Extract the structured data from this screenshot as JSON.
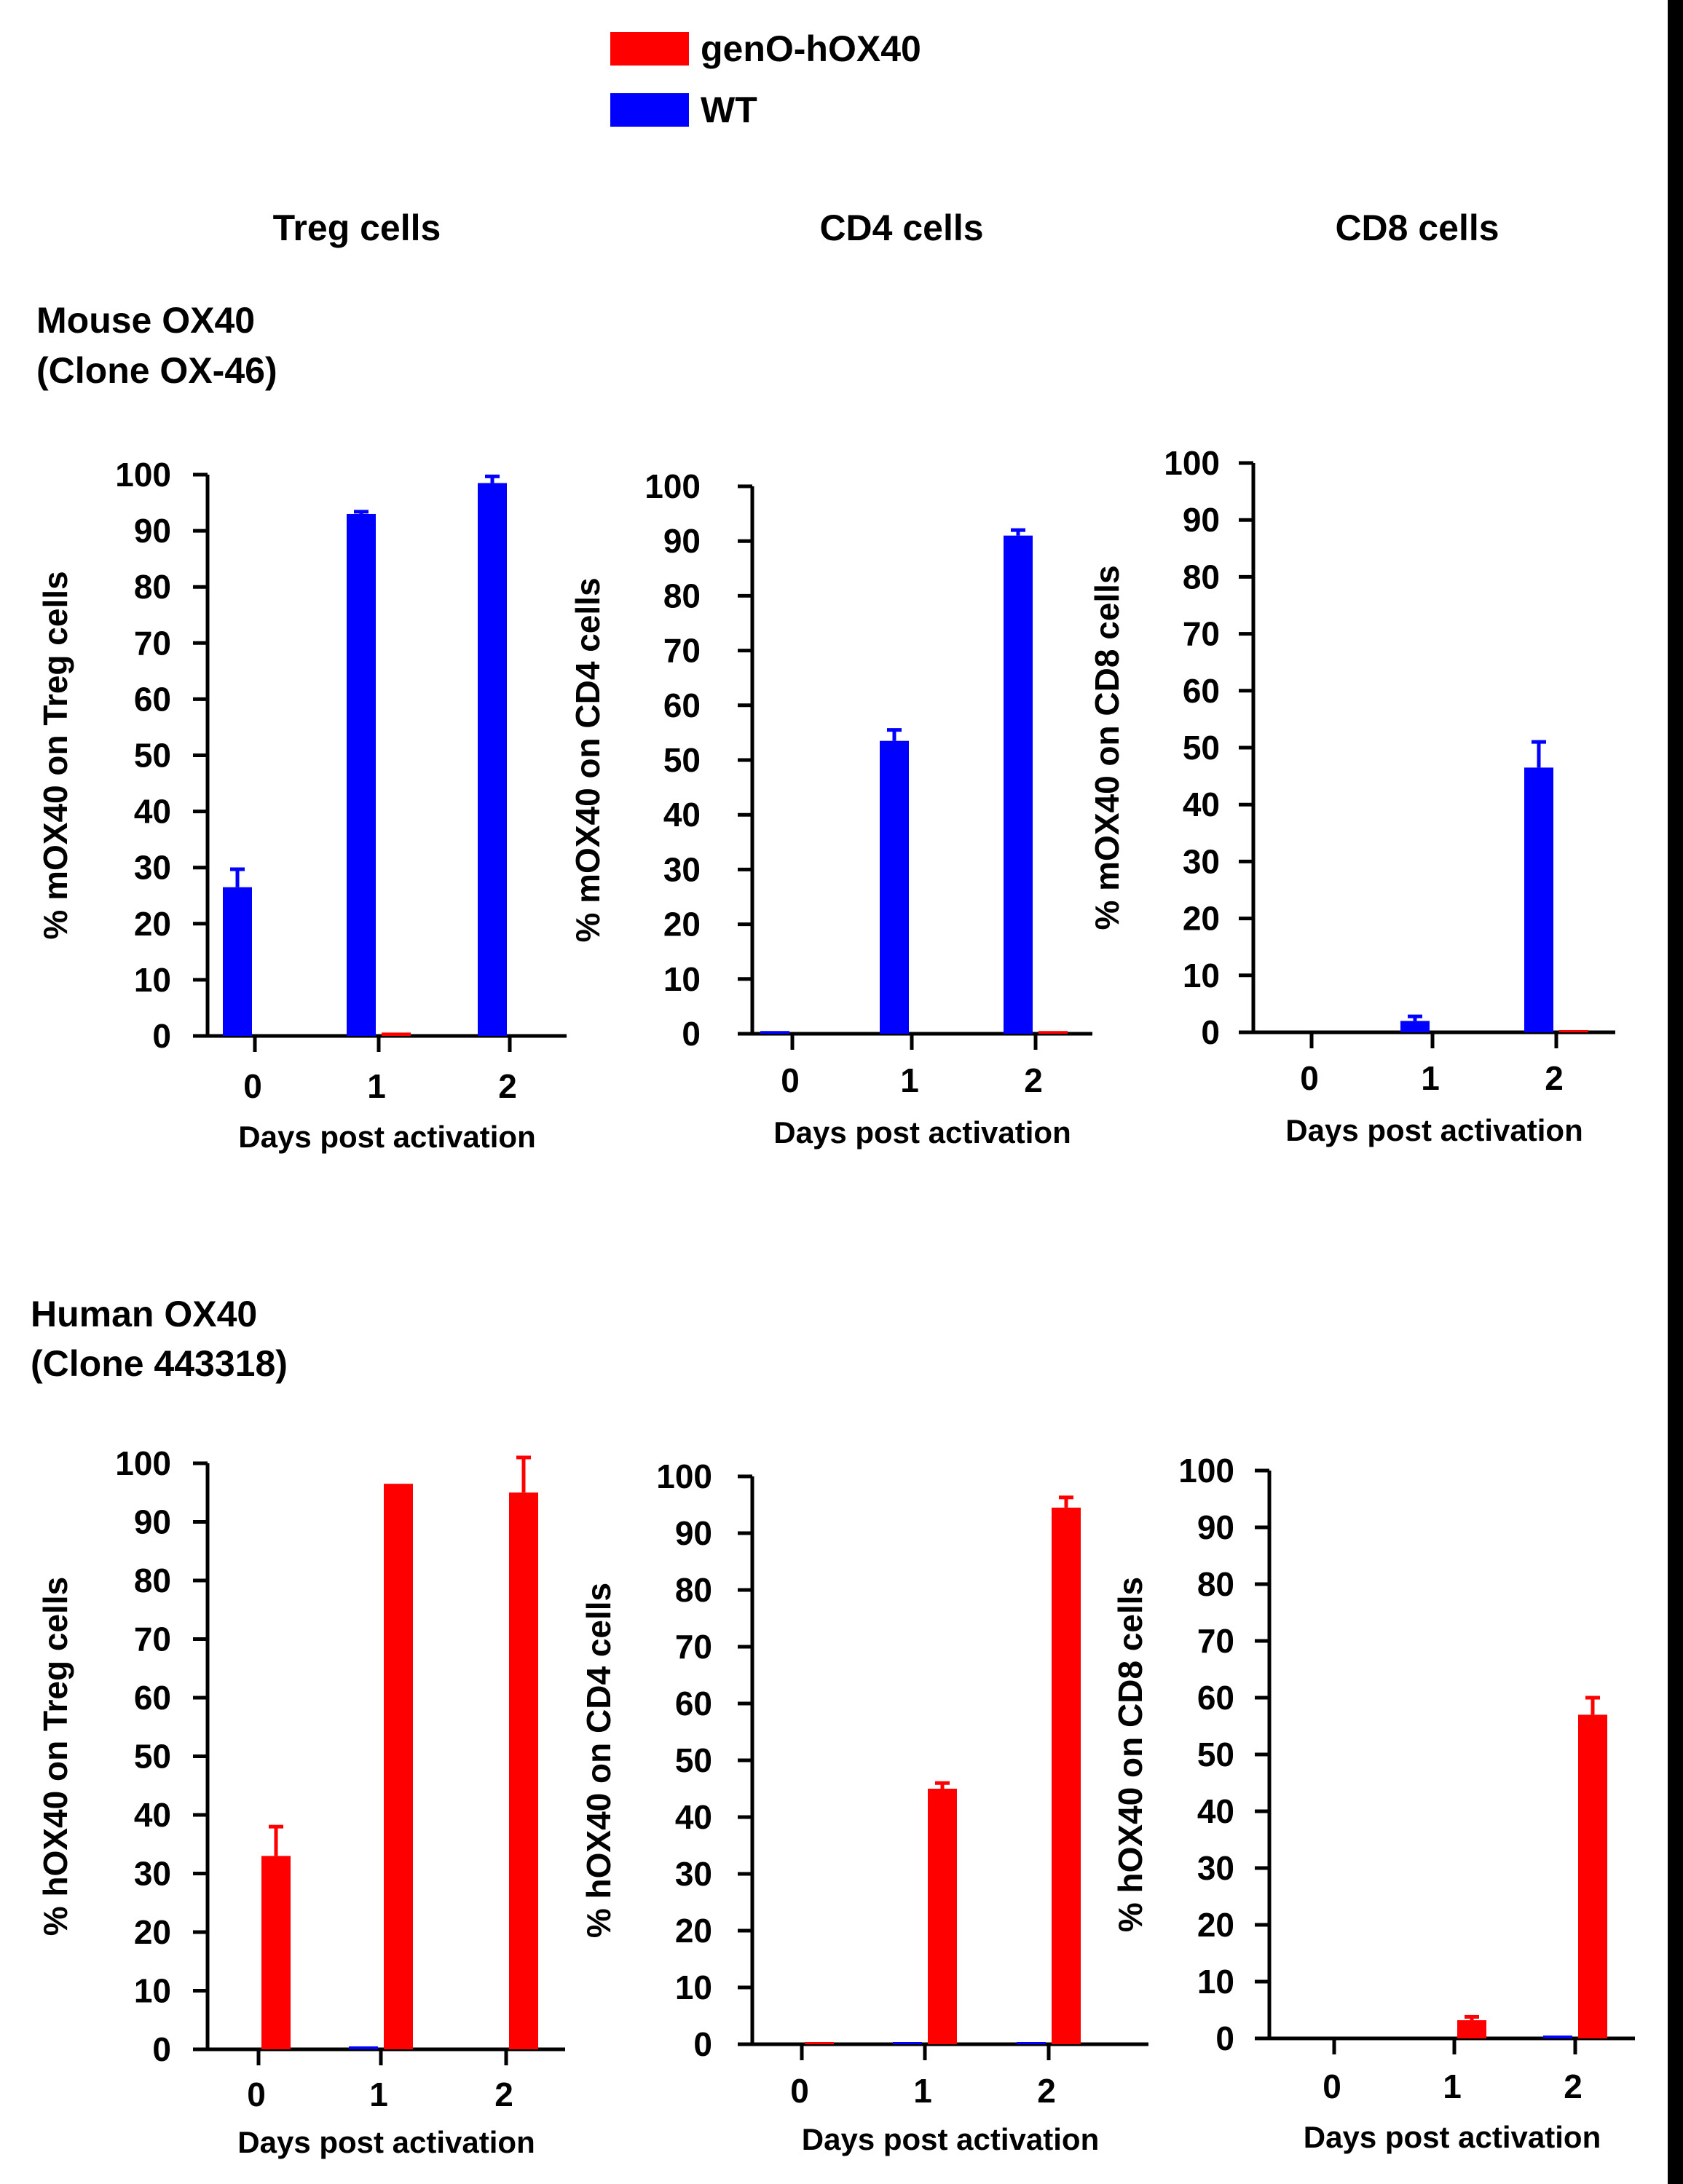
{
  "legend": {
    "items": [
      {
        "label": "genO-hOX40",
        "color": "#ff0000"
      },
      {
        "label": "WT",
        "color": "#0000ff"
      }
    ]
  },
  "column_titles": [
    "Treg cells",
    "CD4 cells",
    "CD8 cells"
  ],
  "row_titles": [
    {
      "line1": "Mouse OX40",
      "line2": "(Clone OX-46)"
    },
    {
      "line1": "Human OX40",
      "line2": "(Clone 443318)"
    }
  ],
  "colors": {
    "geno": "#ff0000",
    "wt": "#0000ff",
    "axis": "#000000"
  },
  "chart_data": [
    {
      "type": "bar",
      "ylabel": "% mOX40 on Treg cells",
      "xlabel": "Days post activation",
      "categories": [
        "0",
        "1",
        "2"
      ],
      "ylim": [
        0,
        100
      ],
      "yticks": [
        0,
        10,
        20,
        30,
        40,
        50,
        60,
        70,
        80,
        90,
        100
      ],
      "series": [
        {
          "name": "WT",
          "values": [
            26.5,
            93,
            98.5
          ],
          "errors": [
            3.2,
            0.4,
            1.2
          ]
        },
        {
          "name": "genO-hOX40",
          "values": [
            0,
            0.6,
            0
          ],
          "errors": [
            0,
            0,
            0
          ]
        }
      ]
    },
    {
      "type": "bar",
      "ylabel": "% mOX40 on CD4 cells",
      "xlabel": "Days post activation",
      "categories": [
        "0",
        "1",
        "2"
      ],
      "ylim": [
        0,
        100
      ],
      "yticks": [
        0,
        10,
        20,
        30,
        40,
        50,
        60,
        70,
        80,
        90,
        100
      ],
      "series": [
        {
          "name": "WT",
          "values": [
            0.5,
            53.5,
            91
          ],
          "errors": [
            0,
            2,
            1
          ]
        },
        {
          "name": "genO-hOX40",
          "values": [
            0,
            0,
            0.5
          ],
          "errors": [
            0,
            0,
            0
          ]
        }
      ]
    },
    {
      "type": "bar",
      "ylabel": "% mOX40 on CD8 cells",
      "xlabel": "Days post activation",
      "categories": [
        "0",
        "1",
        "2"
      ],
      "ylim": [
        0,
        100
      ],
      "yticks": [
        0,
        10,
        20,
        30,
        40,
        50,
        60,
        70,
        80,
        90,
        100
      ],
      "series": [
        {
          "name": "WT",
          "values": [
            0,
            2,
            46.5
          ],
          "errors": [
            0,
            0.8,
            4.5
          ]
        },
        {
          "name": "genO-hOX40",
          "values": [
            0,
            0,
            0.3
          ],
          "errors": [
            0,
            0,
            0
          ]
        }
      ]
    },
    {
      "type": "bar",
      "ylabel": "% hOX40 on Treg cells",
      "xlabel": "Days post activation",
      "categories": [
        "0",
        "1",
        "2"
      ],
      "ylim": [
        0,
        100
      ],
      "yticks": [
        0,
        10,
        20,
        30,
        40,
        50,
        60,
        70,
        80,
        90,
        100
      ],
      "series": [
        {
          "name": "WT",
          "values": [
            0,
            0.5,
            0
          ],
          "errors": [
            0,
            0,
            0
          ]
        },
        {
          "name": "genO-hOX40",
          "values": [
            33,
            96.5,
            95
          ],
          "errors": [
            5,
            0,
            6
          ]
        }
      ]
    },
    {
      "type": "bar",
      "ylabel": "% hOX40 on CD4 cells",
      "xlabel": "Days post activation",
      "categories": [
        "0",
        "1",
        "2"
      ],
      "ylim": [
        0,
        100
      ],
      "yticks": [
        0,
        10,
        20,
        30,
        40,
        50,
        60,
        70,
        80,
        90,
        100
      ],
      "series": [
        {
          "name": "WT",
          "values": [
            0,
            0.2,
            0.3
          ],
          "errors": [
            0,
            0,
            0
          ]
        },
        {
          "name": "genO-hOX40",
          "values": [
            0.3,
            45,
            94.5
          ],
          "errors": [
            0,
            1,
            1.8
          ]
        }
      ]
    },
    {
      "type": "bar",
      "ylabel": "% hOX40 on CD8 cells",
      "xlabel": "Days post activation",
      "categories": [
        "0",
        "1",
        "2"
      ],
      "ylim": [
        0,
        100
      ],
      "yticks": [
        0,
        10,
        20,
        30,
        40,
        50,
        60,
        70,
        80,
        90,
        100
      ],
      "series": [
        {
          "name": "WT",
          "values": [
            0,
            0,
            0.5
          ],
          "errors": [
            0,
            0,
            0
          ]
        },
        {
          "name": "genO-hOX40",
          "values": [
            0,
            3.2,
            57
          ],
          "errors": [
            0,
            0.6,
            3
          ]
        }
      ]
    }
  ]
}
